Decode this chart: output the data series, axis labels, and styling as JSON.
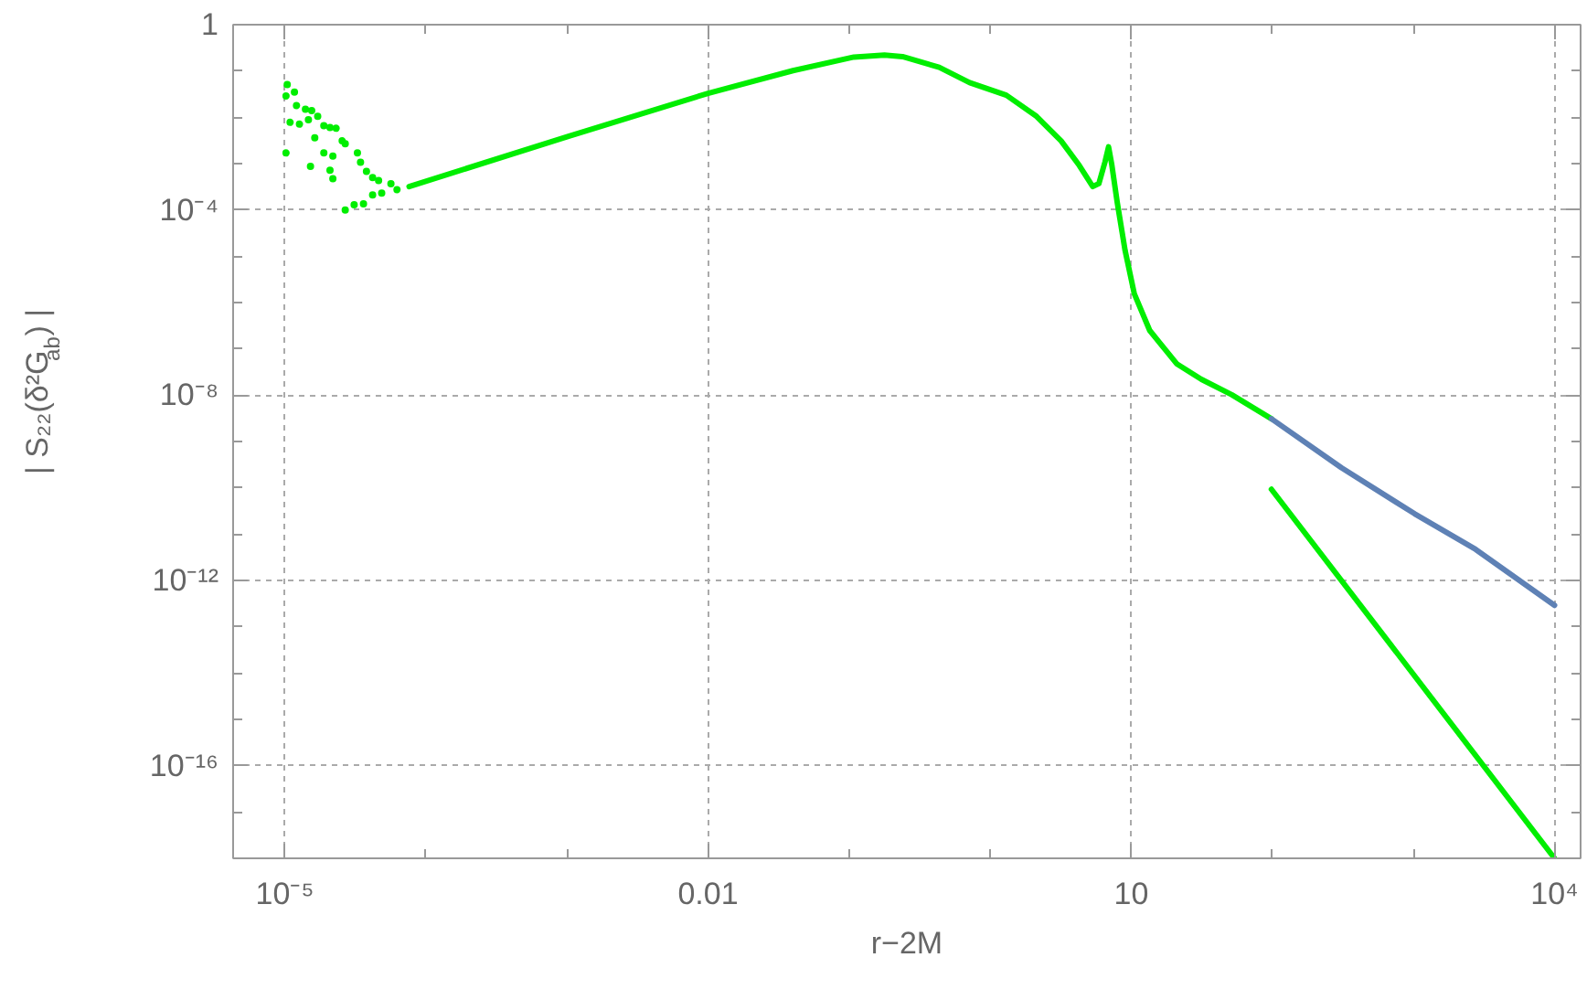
{
  "chart_data": {
    "type": "line",
    "xlabel": "r−2M",
    "ylabel": "| S₂₂(δ²G$_{ab}$) |",
    "log": "xy",
    "grid": true,
    "xlim": [
      4.3e-06,
      15300
    ],
    "ylim": [
      1e-18,
      1
    ],
    "xticks": [
      {
        "value": 1e-05,
        "label": "10⁻⁵"
      },
      {
        "value": 0.0001,
        "label": null
      },
      {
        "value": 0.001,
        "label": null
      },
      0.01,
      {
        "value": 0.1,
        "label": null
      },
      {
        "value": 1,
        "label": null
      },
      10,
      {
        "value": 100,
        "label": null
      },
      {
        "value": 1000,
        "label": null
      },
      {
        "value": 10000,
        "label": "10⁴"
      }
    ],
    "yticks": [
      1,
      {
        "value": 0.1,
        "label": null
      },
      {
        "value": 0.01,
        "label": null
      },
      {
        "value": 0.001,
        "label": null
      },
      {
        "value": 0.0001,
        "label": "10⁻⁴"
      },
      {
        "value": 1e-05,
        "label": null
      },
      {
        "value": 1e-06,
        "label": null
      },
      {
        "value": 1e-07,
        "label": null
      },
      {
        "value": 1e-08,
        "label": "10⁻⁸"
      },
      {
        "value": 1e-09,
        "label": null
      },
      {
        "value": 1e-10,
        "label": null
      },
      {
        "value": 1e-11,
        "label": null
      },
      {
        "value": 1e-12,
        "label": "10⁻¹²"
      },
      {
        "value": 1e-13,
        "label": null
      },
      {
        "value": 1e-14,
        "label": null
      },
      {
        "value": 1e-15,
        "label": null
      },
      {
        "value": 1e-16,
        "label": "10⁻¹⁶"
      },
      {
        "value": 1e-17,
        "label": null
      }
    ],
    "series": [
      {
        "type": "scatter",
        "marker": "circle",
        "color": "#00ee00",
        "x": [
          1.04e-05,
          1.17e-05,
          1.02e-05,
          1.21e-05,
          1.09e-05,
          1.27e-05,
          1.4e-05,
          1.55e-05,
          1.71e-05,
          1.47e-05,
          1.89e-05,
          2.09e-05,
          2.31e-05,
          1.63e-05,
          1.89e-05,
          2.19e-05,
          2.55e-05,
          2.68e-05,
          1.02e-05,
          1.52e-05,
          2.09e-05,
          2.19e-05,
          3.27e-05,
          3.44e-05,
          3.79e-05,
          4.19e-05,
          4.62e-05,
          4.86e-05,
          5.65e-05,
          6.24e-05,
          2.68e-05,
          3.1e-05,
          3.61e-05,
          4.19e-05
        ],
        "values": [
          0.051,
          0.035,
          0.029,
          0.018,
          0.0078,
          0.0071,
          0.015,
          0.014,
          0.0105,
          0.0089,
          0.0066,
          0.006,
          0.0058,
          0.0036,
          0.0017,
          0.00145,
          0.0031,
          0.0027,
          0.0017,
          0.00087,
          0.00072,
          0.00047,
          0.0017,
          0.00107,
          0.00068,
          0.0005,
          0.00043,
          0.00023,
          0.00037,
          0.000275,
          0.0001,
          0.000129,
          0.000135,
          0.00021
        ]
      },
      {
        "color": "#00ee00",
        "x": [
          7.6e-05,
          0.001,
          0.01,
          0.04,
          0.108,
          0.178,
          0.239,
          0.435,
          0.714,
          1.3,
          2.13,
          3.18,
          4.28,
          5.33,
          5.89,
          6.5,
          6.9,
          7.26,
          7.94,
          9.04,
          10.5,
          13.5,
          21.1,
          31.4,
          51.6,
          98.4
        ],
        "values": [
          0.00032,
          0.0038,
          0.033,
          0.102,
          0.2,
          0.22,
          0.204,
          0.12,
          0.056,
          0.03,
          0.0105,
          0.0031,
          0.00091,
          0.00032,
          0.00037,
          0.00107,
          0.0023,
          0.00098,
          0.000148,
          1.32e-05,
          1.55e-06,
          2.5e-07,
          4.7e-08,
          2.2e-08,
          1.02e-08,
          3.1e-09
        ]
      },
      {
        "color": "#5e81b5",
        "x": [
          98.4,
          309,
          1019,
          2754,
          10000
        ],
        "values": [
          3.1e-09,
          2.7e-10,
          2.75e-11,
          4.7e-12,
          2.9e-13
        ]
      },
      {
        "color": "#00ee00",
        "x": [
          98.4,
          10000
        ],
        "values": [
          9.3e-11,
          1e-18
        ]
      }
    ]
  }
}
